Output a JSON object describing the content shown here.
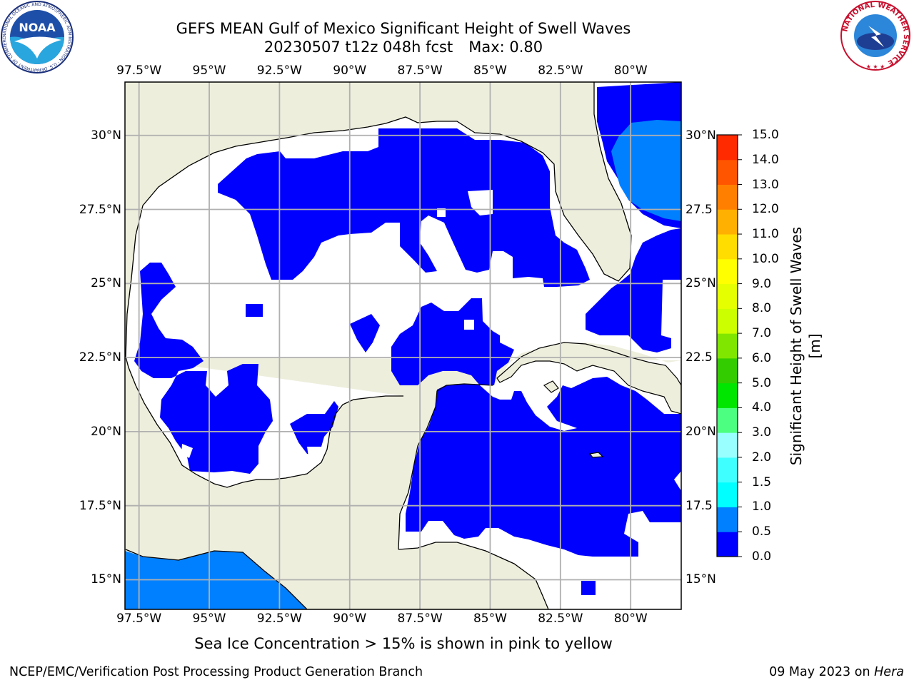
{
  "title_line1": "GEFS MEAN Gulf of Mexico Significant Height of Swell Waves",
  "title_run": "20230507 t12z 048h fcst",
  "title_max": "Max: 0.80",
  "map": {
    "lon_labels": [
      "97.5°W",
      "95°W",
      "92.5°W",
      "90°W",
      "87.5°W",
      "85°W",
      "82.5°W",
      "80°W"
    ],
    "lon_values": [
      -97.5,
      -95,
      -92.5,
      -90,
      -87.5,
      -85,
      -82.5,
      -80
    ],
    "lat_labels": [
      "30°N",
      "27.5°N",
      "25°N",
      "22.5°N",
      "20°N",
      "17.5°N",
      "15°N"
    ],
    "lat_values": [
      30,
      27.5,
      25,
      22.5,
      20,
      17.5,
      15
    ],
    "right_lat_labels": [
      "30°N",
      "27.5",
      "25°N",
      "22.5",
      "20°N",
      "17.5",
      "15°N"
    ],
    "lon_range": [
      -98,
      -78.2
    ],
    "lat_range": [
      14,
      31.8
    ],
    "colors": {
      "land": "#eeeedd",
      "below_0_5": "#0000ff",
      "from_0_5": "#0080ff",
      "undefined": "#ffffff",
      "grid": "#b0b0b0",
      "coast": "#000000"
    }
  },
  "colorbar": {
    "label": "Significant Height of Swell Waves [m]",
    "ticks": [
      "15.0",
      "14.0",
      "13.0",
      "12.0",
      "11.0",
      "10.0",
      "9.0",
      "8.0",
      "7.0",
      "6.0",
      "5.0",
      "4.0",
      "3.0",
      "2.0",
      "1.5",
      "1.0",
      "0.5",
      "0.0"
    ],
    "levels": [
      0,
      0.5,
      1.0,
      1.5,
      2.0,
      3.0,
      4.0,
      5.0,
      6.0,
      7.0,
      8.0,
      9.0,
      10.0,
      11.0,
      12.0,
      13.0,
      14.0,
      15.0
    ],
    "colors": [
      "#0000ff",
      "#0080ff",
      "#00ffff",
      "#40ffff",
      "#99ffff",
      "#4dff80",
      "#00e600",
      "#33cc00",
      "#80e600",
      "#ccff00",
      "#e6ff00",
      "#ffff00",
      "#ffdd00",
      "#ffb000",
      "#ff8000",
      "#ff5500",
      "#ff2a00",
      "#ff0000"
    ]
  },
  "footnote": "Sea Ice Concentration > 15% is shown in pink to yellow",
  "credit_left": "NCEP/EMC/Verification Post Processing Product Generation Branch",
  "credit_date": "09 May 2023 on",
  "credit_host": "Hera",
  "logos": {
    "noaa_text": "NOAA",
    "noaa_ring": "NATIONAL OCEANIC AND ATMOSPHERIC ADMINISTRATION · U.S. DEPARTMENT OF COMMERCE ·",
    "nws_ring": "NATIONAL WEATHER SERVICE"
  }
}
